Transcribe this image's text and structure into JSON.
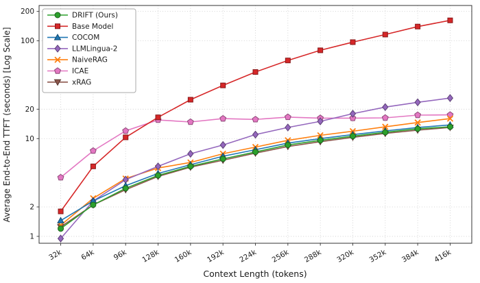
{
  "chart_data": {
    "type": "line",
    "title": "",
    "xlabel": "Context Length (tokens)",
    "ylabel": "Average End-to-End TTFT (seconds) [Log Scale]",
    "x_categories": [
      "32k",
      "64k",
      "96k",
      "128k",
      "160k",
      "192k",
      "224k",
      "256k",
      "288k",
      "320k",
      "352k",
      "384k",
      "416k"
    ],
    "yscale": "log",
    "ylim": [
      0.85,
      230
    ],
    "yticks": [
      1,
      2,
      10,
      20,
      100,
      200
    ],
    "grid": "dotted",
    "legend_position": "upper-left",
    "series": [
      {
        "name": "DRIFT (Ours)",
        "color": "#2ca02c",
        "marker": "circle",
        "values": [
          1.2,
          2.1,
          3.1,
          4.2,
          5.2,
          6.2,
          7.3,
          8.6,
          9.6,
          10.6,
          11.6,
          12.6,
          13.2
        ]
      },
      {
        "name": "Base Model",
        "color": "#d62728",
        "marker": "square",
        "values": [
          1.8,
          5.2,
          10.3,
          16.5,
          25,
          35,
          48,
          63,
          80,
          97,
          116,
          140,
          162
        ]
      },
      {
        "name": "COCOM",
        "color": "#1f77b4",
        "marker": "triangle-up",
        "values": [
          1.45,
          2.3,
          3.3,
          4.4,
          5.4,
          6.6,
          7.7,
          9.0,
          10.0,
          11.0,
          12.0,
          13.0,
          13.8
        ]
      },
      {
        "name": "LLMLingua-2",
        "color": "#9467bd",
        "marker": "diamond",
        "values": [
          0.95,
          2.3,
          3.8,
          5.2,
          7.0,
          8.6,
          11.0,
          13.0,
          15.0,
          18.0,
          21.0,
          23.5,
          26.0
        ]
      },
      {
        "name": "NaiveRAG",
        "color": "#ff7f0e",
        "marker": "x",
        "values": [
          1.3,
          2.45,
          3.9,
          5.0,
          5.7,
          7.0,
          8.2,
          9.6,
          10.8,
          11.9,
          13.2,
          14.6,
          16.0
        ]
      },
      {
        "name": "ICAE",
        "color": "#e377c2",
        "marker": "pentagon",
        "values": [
          4.0,
          7.5,
          12.0,
          15.5,
          14.8,
          16.0,
          15.7,
          16.6,
          16.2,
          16.2,
          16.3,
          17.4,
          17.5
        ]
      },
      {
        "name": "xRAG",
        "color": "#8c564b",
        "marker": "triangle-down",
        "values": [
          1.25,
          2.1,
          3.0,
          4.1,
          5.1,
          6.0,
          7.1,
          8.3,
          9.3,
          10.3,
          11.3,
          12.2,
          13.0
        ]
      }
    ]
  }
}
